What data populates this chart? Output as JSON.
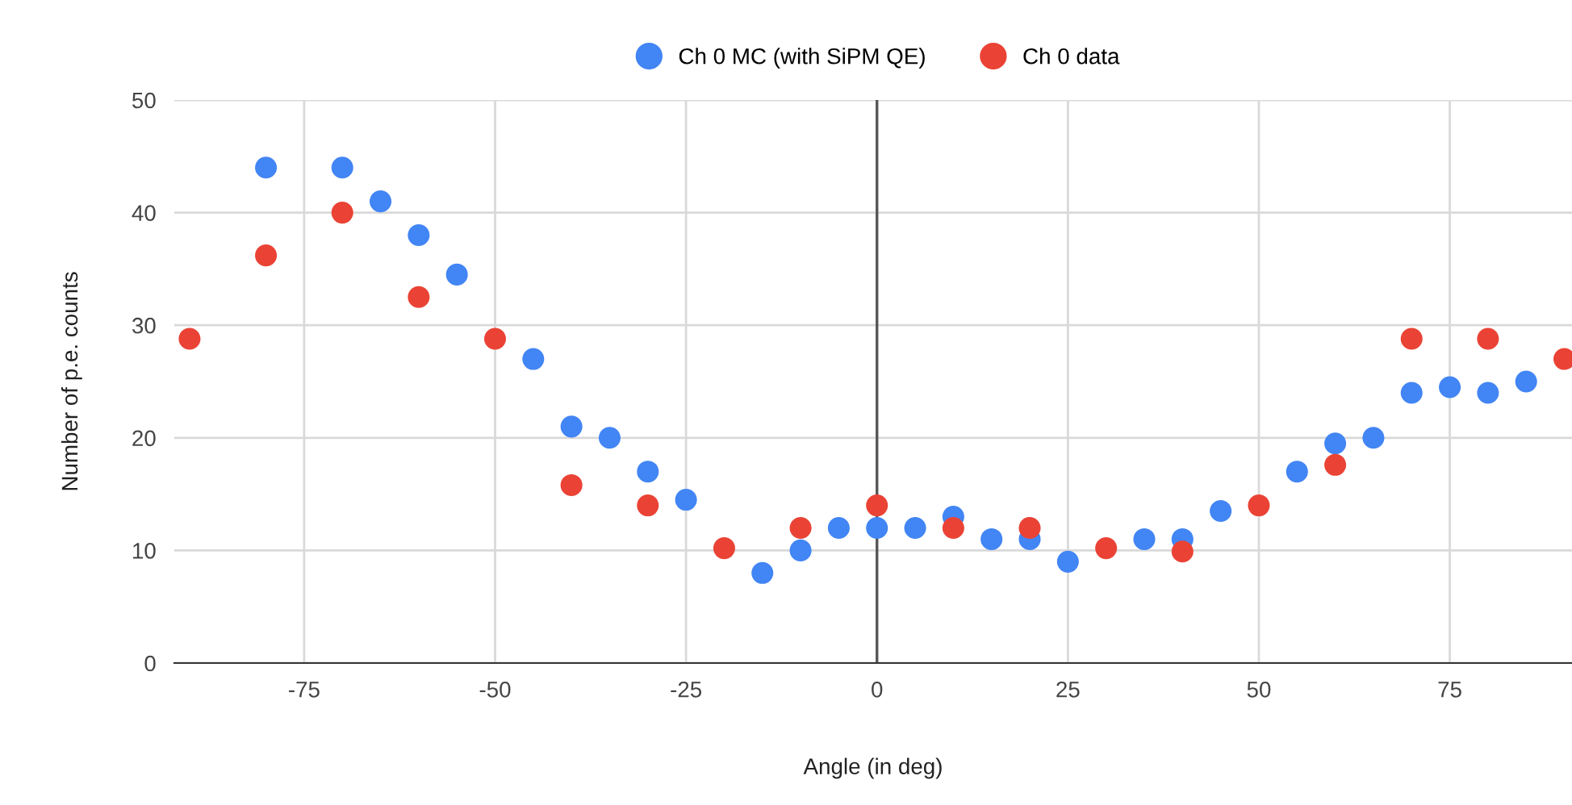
{
  "chart_data": {
    "type": "scatter",
    "xlabel": "Angle (in deg)",
    "ylabel": "Number of p.e. counts",
    "series": [
      {
        "name": "Ch 0 MC (with SiPM QE)",
        "color": "#4285f4",
        "x": [
          -80,
          -70,
          -65,
          -60,
          -55,
          -45,
          -40,
          -35,
          -30,
          -25,
          -15,
          -10,
          -5,
          0,
          5,
          10,
          15,
          20,
          25,
          35,
          40,
          45,
          55,
          60,
          65,
          70,
          75,
          80,
          85
        ],
        "values": [
          44,
          44,
          41,
          38,
          34.5,
          27,
          21,
          20,
          17,
          14.5,
          8,
          10,
          12,
          12,
          12,
          13,
          11,
          11,
          9,
          11,
          11,
          13.5,
          17,
          19.5,
          20,
          24,
          24.5,
          24,
          25
        ]
      },
      {
        "name": "Ch 0 data",
        "color": "#ea4335",
        "x": [
          -90,
          -80,
          -70,
          -60,
          -50,
          -40,
          -30,
          -20,
          -10,
          0,
          10,
          20,
          30,
          40,
          50,
          60,
          70,
          80,
          90
        ],
        "values": [
          28.8,
          36.2,
          40,
          32.5,
          28.8,
          15.8,
          14,
          10.2,
          12,
          14,
          12,
          12,
          10.2,
          9.9,
          14,
          17.6,
          28.8,
          28.8,
          27
        ]
      }
    ],
    "xlim": [
      -92,
      91
    ],
    "xticks": [
      -75,
      -50,
      -25,
      0,
      25,
      50,
      75
    ],
    "ylim": [
      0,
      50
    ],
    "yticks": [
      0,
      10,
      20,
      30,
      40,
      50
    ],
    "ref_lines": [
      {
        "axis": "x",
        "value": 0,
        "color": "#555555"
      }
    ],
    "grid": true,
    "legend": "top",
    "marker": "circle"
  }
}
